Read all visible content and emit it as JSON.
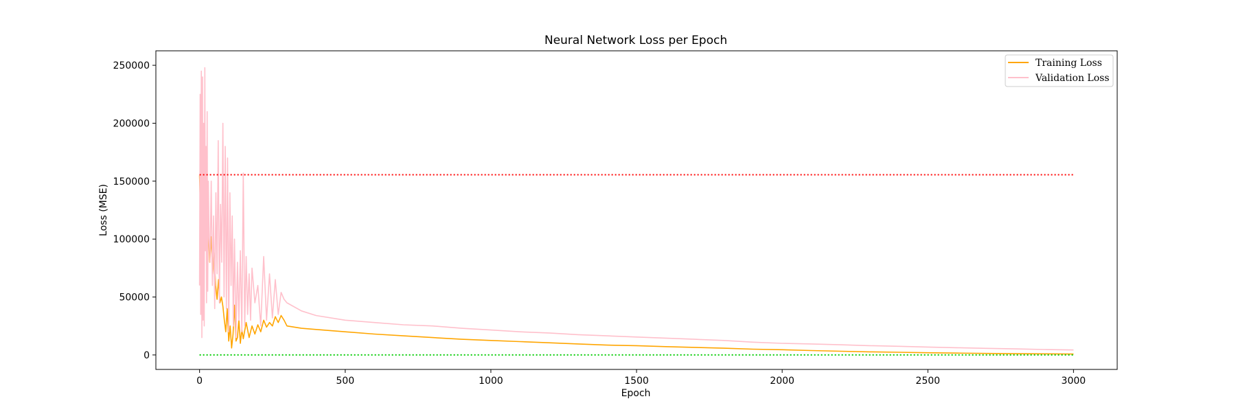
{
  "chart_data": {
    "type": "line",
    "title": "Neural Network Loss per Epoch",
    "xlabel": "Epoch",
    "ylabel": "Loss (MSE)",
    "xlim": [
      -150,
      3150
    ],
    "ylim": [
      -12500,
      262500
    ],
    "xticks": [
      0,
      500,
      1000,
      1500,
      2000,
      2500,
      3000
    ],
    "xtick_labels": [
      "0",
      "500",
      "1000",
      "1500",
      "2000",
      "2500",
      "3000"
    ],
    "yticks": [
      0,
      50000,
      100000,
      150000,
      200000,
      250000
    ],
    "ytick_labels": [
      "0",
      "50000",
      "100000",
      "150000",
      "200000",
      "250000"
    ],
    "grid": false,
    "legend_position": "top-right",
    "series": [
      {
        "name": "Training Loss",
        "color": "#ffa500",
        "style": "solid",
        "x": [
          0,
          3,
          6,
          10,
          14,
          18,
          22,
          26,
          30,
          35,
          40,
          45,
          50,
          55,
          60,
          65,
          70,
          75,
          80,
          85,
          90,
          95,
          100,
          105,
          110,
          115,
          120,
          125,
          130,
          135,
          140,
          145,
          150,
          160,
          170,
          180,
          190,
          200,
          210,
          220,
          230,
          240,
          250,
          260,
          270,
          280,
          290,
          300,
          350,
          400,
          500,
          600,
          700,
          800,
          900,
          1000,
          1100,
          1200,
          1300,
          1400,
          1500,
          1600,
          1700,
          1800,
          1900,
          2000,
          2100,
          2200,
          2300,
          2400,
          2500,
          2600,
          2700,
          2800,
          2900,
          3000
        ],
        "y": [
          155000,
          125000,
          148000,
          132000,
          115000,
          140000,
          120000,
          95000,
          105000,
          80000,
          102000,
          70000,
          88000,
          60000,
          48000,
          65000,
          45000,
          50000,
          42000,
          30000,
          20000,
          40000,
          12000,
          25000,
          6000,
          18000,
          43000,
          12000,
          15000,
          30000,
          10000,
          22000,
          14000,
          28000,
          15000,
          25000,
          18000,
          26000,
          20000,
          30000,
          24000,
          28000,
          25000,
          33000,
          28000,
          34000,
          30000,
          25000,
          23000,
          22000,
          20000,
          18000,
          16500,
          15000,
          13500,
          12500,
          11500,
          10500,
          9500,
          8500,
          8000,
          7200,
          6500,
          5800,
          5000,
          4500,
          3800,
          3200,
          2700,
          2300,
          1900,
          1600,
          1300,
          1100,
          950,
          800
        ]
      },
      {
        "name": "Validation Loss",
        "color": "#ffc0cb",
        "style": "solid",
        "x": [
          0,
          2,
          4,
          6,
          8,
          10,
          12,
          14,
          16,
          18,
          20,
          22,
          24,
          26,
          28,
          30,
          33,
          36,
          40,
          44,
          48,
          52,
          56,
          60,
          64,
          68,
          72,
          76,
          80,
          84,
          88,
          92,
          96,
          100,
          104,
          108,
          112,
          116,
          120,
          125,
          130,
          135,
          140,
          145,
          150,
          155,
          160,
          165,
          170,
          175,
          180,
          190,
          200,
          210,
          220,
          230,
          240,
          250,
          260,
          270,
          280,
          290,
          300,
          350,
          400,
          500,
          600,
          700,
          800,
          900,
          1000,
          1100,
          1200,
          1300,
          1400,
          1500,
          1600,
          1700,
          1800,
          1900,
          2000,
          2100,
          2200,
          2300,
          2400,
          2500,
          2600,
          2700,
          2800,
          2900,
          3000
        ],
        "y": [
          60000,
          225000,
          35000,
          245000,
          15000,
          240000,
          30000,
          200000,
          25000,
          248000,
          90000,
          180000,
          45000,
          210000,
          55000,
          150000,
          100000,
          80000,
          150000,
          60000,
          120000,
          40000,
          140000,
          70000,
          185000,
          45000,
          130000,
          80000,
          200000,
          50000,
          180000,
          40000,
          170000,
          20000,
          140000,
          60000,
          120000,
          25000,
          100000,
          15000,
          80000,
          30000,
          90000,
          20000,
          157000,
          25000,
          85000,
          35000,
          70000,
          30000,
          75000,
          45000,
          60000,
          25000,
          85000,
          30000,
          70000,
          32000,
          65000,
          35000,
          54000,
          48000,
          45000,
          38000,
          34000,
          30000,
          28000,
          26000,
          25000,
          23000,
          21500,
          20000,
          19000,
          17500,
          16500,
          15500,
          14500,
          13500,
          12500,
          11000,
          10000,
          9500,
          8800,
          8000,
          7500,
          6800,
          6200,
          5700,
          5200,
          4700,
          4300
        ]
      },
      {
        "name": "",
        "color": "#ff0000",
        "style": "dotted",
        "x": [
          0,
          3000
        ],
        "y": [
          155500,
          155500
        ]
      },
      {
        "name": "",
        "color": "#00cc00",
        "style": "dotted",
        "x": [
          0,
          3000
        ],
        "y": [
          0,
          0
        ]
      }
    ]
  }
}
